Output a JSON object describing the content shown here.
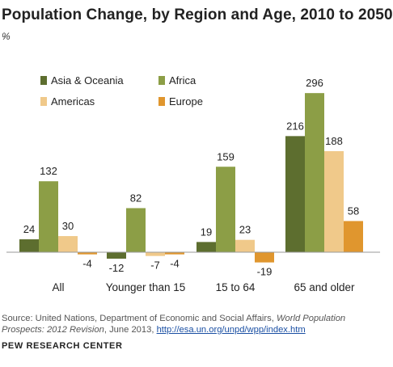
{
  "title": "Population Change, by Region and Age, 2010 to 2050",
  "unit_label": "%",
  "chart_data": {
    "type": "bar",
    "categories": [
      "All",
      "Younger than 15",
      "15 to 64",
      "65 and older"
    ],
    "series": [
      {
        "name": "Asia & Oceania",
        "color": "#5d6e2f",
        "values": [
          24,
          -12,
          19,
          216
        ]
      },
      {
        "name": "Africa",
        "color": "#8c9e46",
        "values": [
          132,
          82,
          159,
          296
        ]
      },
      {
        "name": "Americas",
        "color": "#f0c98a",
        "values": [
          30,
          -7,
          23,
          188
        ]
      },
      {
        "name": "Europe",
        "color": "#e0962e",
        "values": [
          -4,
          -4,
          -19,
          58
        ]
      }
    ],
    "data_labels": [
      [
        "24",
        "-12",
        "19",
        "216"
      ],
      [
        "132",
        "82",
        "159",
        "296"
      ],
      [
        "30",
        "-7",
        "23",
        "188"
      ],
      [
        "-4",
        "-4",
        "-19",
        "58"
      ]
    ],
    "ylim": [
      -20,
      300
    ],
    "legend_position": "top-left",
    "grid": false
  },
  "source": {
    "prefix": "Source: United Nations, Department of Economic and Social Affairs, ",
    "publication": "World Population Prospects: 2012 Revision",
    "suffix": ", June 2013, ",
    "link": "http://esa.un.org/unpd/wpp/index.htm"
  },
  "brand": "PEW RESEARCH CENTER"
}
